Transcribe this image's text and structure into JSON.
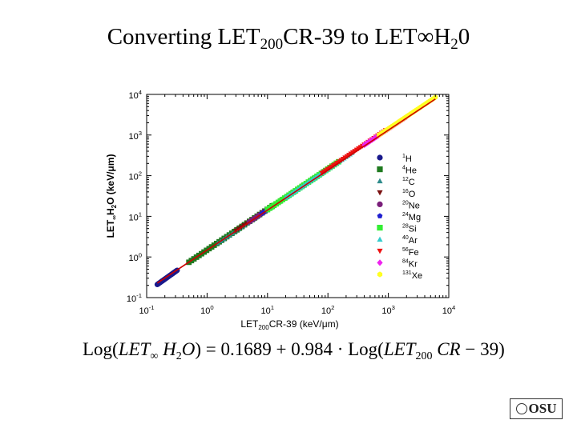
{
  "slide": {
    "title_parts": [
      "Converting LET",
      "200",
      "CR-39 to LET",
      "∞",
      "H",
      "2",
      "0"
    ],
    "equation_parts": [
      "Log(",
      "LET",
      "∞",
      " H",
      "2",
      "O",
      ") = 0.1689 + 0.984 · Log(",
      "LET",
      "200",
      " CR",
      " − 39)"
    ],
    "logo_text": "OSU"
  },
  "chart_data": {
    "type": "scatter",
    "title": "",
    "xlabel_parts": [
      "LET",
      "200",
      "CR-39 (keV/μm)"
    ],
    "ylabel_parts": [
      "LET",
      "∞",
      "H",
      "2",
      "O (keV/μm)"
    ],
    "x_scale": "log",
    "y_scale": "log",
    "xlim": [
      0.1,
      10000
    ],
    "ylim": [
      0.1,
      10000
    ],
    "x_ticks": [
      0.1,
      1,
      10,
      100,
      1000,
      10000
    ],
    "y_ticks": [
      0.1,
      1,
      10,
      100,
      1000,
      10000
    ],
    "x_tick_labels": [
      [
        "10",
        "-1"
      ],
      [
        "10",
        "0"
      ],
      [
        "10",
        "1"
      ],
      [
        "10",
        "2"
      ],
      [
        "10",
        "3"
      ],
      [
        "10",
        "4"
      ]
    ],
    "y_tick_labels": [
      [
        "10",
        "-1"
      ],
      [
        "10",
        "0"
      ],
      [
        "10",
        "1"
      ],
      [
        "10",
        "2"
      ],
      [
        "10",
        "3"
      ],
      [
        "10",
        "4"
      ]
    ],
    "grid": false,
    "legend_position": "right",
    "fit": {
      "intercept": 0.1689,
      "slope": 0.984,
      "color": "#cc0000"
    },
    "series": [
      {
        "name_parts": [
          "1",
          "H"
        ],
        "marker": "circle",
        "color": "#1a1a8c",
        "x_range": [
          0.15,
          0.32
        ],
        "y_range": [
          0.21,
          0.47
        ]
      },
      {
        "name_parts": [
          "4",
          "He"
        ],
        "marker": "square",
        "color": "#1f7a1f",
        "x_range": [
          0.5,
          12
        ],
        "y_range": [
          0.74,
          18
        ]
      },
      {
        "name_parts": [
          "12",
          "C"
        ],
        "marker": "triangle",
        "color": "#2e8b8b",
        "x_range": [
          1.5,
          60
        ],
        "y_range": [
          2.2,
          88
        ]
      },
      {
        "name_parts": [
          "16",
          "O"
        ],
        "marker": "tri-down",
        "color": "#7a1010",
        "x_range": [
          3,
          90
        ],
        "y_range": [
          4.4,
          130
        ]
      },
      {
        "name_parts": [
          "20",
          "Ne"
        ],
        "marker": "circle",
        "color": "#7a1f7a",
        "x_range": [
          5,
          110
        ],
        "y_range": [
          7.3,
          160
        ]
      },
      {
        "name_parts": [
          "24",
          "Mg"
        ],
        "marker": "pentagon",
        "color": "#1f1fd0",
        "x_range": [
          8,
          130
        ],
        "y_range": [
          11.7,
          190
        ]
      },
      {
        "name_parts": [
          "28",
          "Si"
        ],
        "marker": "square",
        "color": "#33ee33",
        "x_range": [
          10,
          150
        ],
        "y_range": [
          14.6,
          220
        ]
      },
      {
        "name_parts": [
          "40",
          "Ar"
        ],
        "marker": "triangle",
        "color": "#33cccc",
        "x_range": [
          20,
          250
        ],
        "y_range": [
          29,
          365
        ]
      },
      {
        "name_parts": [
          "56",
          "Fe"
        ],
        "marker": "tri-down",
        "color": "#ee1111",
        "x_range": [
          80,
          900
        ],
        "y_range": [
          115,
          1300
        ]
      },
      {
        "name_parts": [
          "84",
          "Kr"
        ],
        "marker": "diamond",
        "color": "#ee22ee",
        "x_range": [
          400,
          2000
        ],
        "y_range": [
          570,
          2800
        ]
      },
      {
        "name_parts": [
          "131",
          "Xe"
        ],
        "marker": "hexagon",
        "color": "#ffff22",
        "x_range": [
          700,
          6000
        ],
        "y_range": [
          1000,
          8500
        ]
      }
    ]
  }
}
